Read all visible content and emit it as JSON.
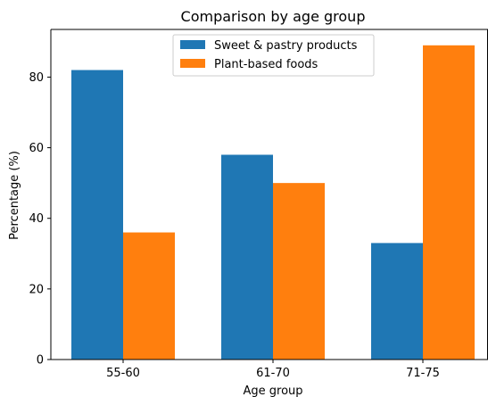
{
  "chart_data": {
    "type": "bar",
    "title": "Comparison by age group",
    "xlabel": "Age group",
    "ylabel": "Percentage (%)",
    "categories": [
      "55-60",
      "61-70",
      "71-75"
    ],
    "series": [
      {
        "name": "Sweet & pastry products",
        "values": [
          82,
          58,
          33
        ],
        "color": "#1f77b4"
      },
      {
        "name": "Plant-based foods",
        "values": [
          36,
          50,
          89
        ],
        "color": "#ff7f0e"
      }
    ],
    "ylim": [
      0,
      93.5
    ],
    "yticks": [
      0,
      20,
      40,
      60,
      80
    ],
    "grid": false,
    "legend_position": "top-center"
  }
}
